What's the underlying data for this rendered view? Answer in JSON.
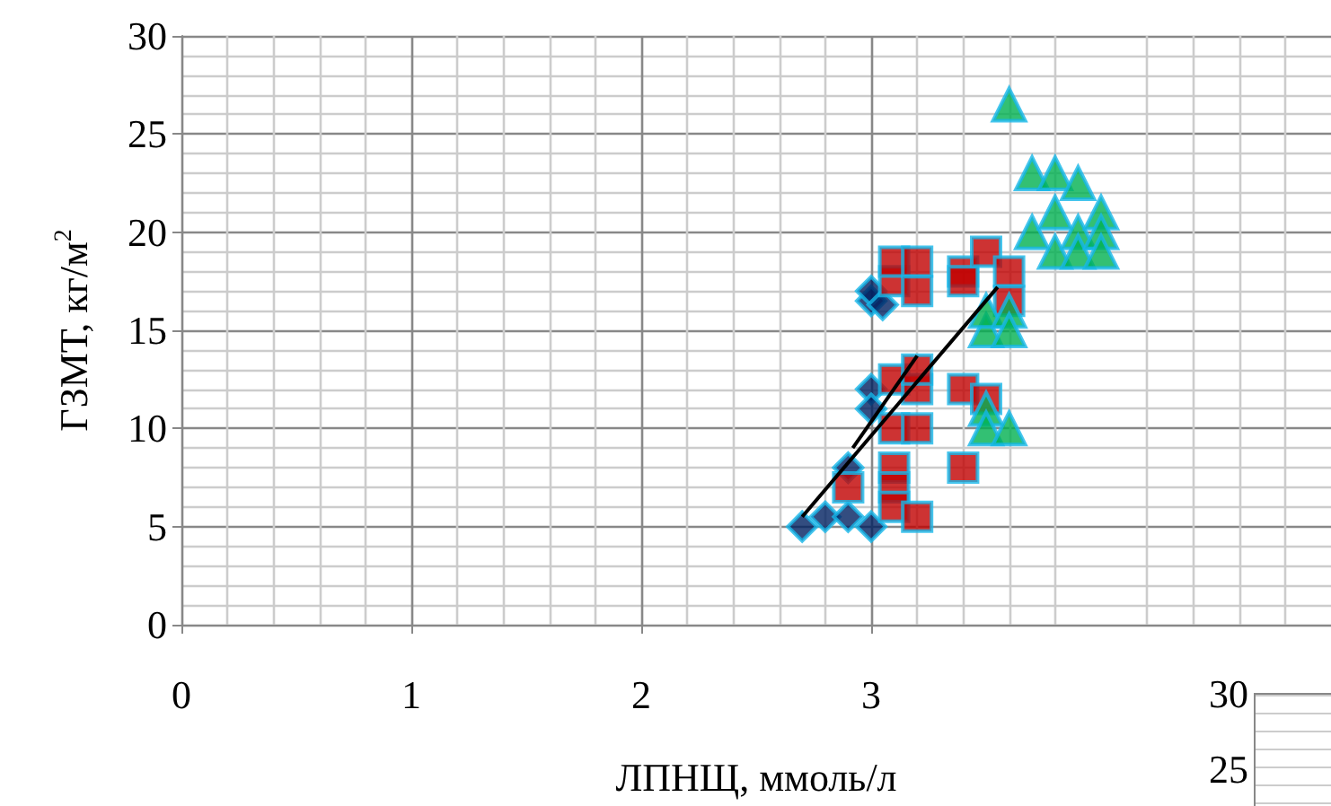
{
  "chart_data": [
    {
      "type": "scatter",
      "xlabel": "ЛПНЩ, ммоль/л",
      "ylabel": "ГЗМТ, кг/м$^{2}$",
      "xlim": [
        0,
        5
      ],
      "xticks": [
        0,
        1,
        2,
        3
      ],
      "ylim": [
        0,
        30
      ],
      "yticks": [
        0,
        5,
        10,
        15,
        20,
        25,
        30
      ],
      "grid": true,
      "series": [
        {
          "color": "#002060",
          "marker": "diamond",
          "x": [
            2.7,
            2.8,
            2.9,
            3.0,
            2.9,
            3.0,
            3.0,
            3.0,
            3.0,
            3.05
          ],
          "values": [
            5,
            5.5,
            5.5,
            5,
            8,
            12,
            11,
            16.5,
            17,
            16.3
          ]
        },
        {
          "color": "#c00000",
          "marker": "square",
          "x": [
            2.9,
            3.1,
            3.1,
            3.1,
            3.2,
            3.1,
            3.2,
            3.1,
            3.2,
            3.2,
            3.1,
            3.1,
            3.2,
            3.2,
            3.4,
            3.4,
            3.5,
            3.6,
            3.6,
            3.4,
            3.5,
            3.4
          ],
          "values": [
            7,
            8,
            7,
            6,
            5.5,
            10,
            10,
            12.5,
            12,
            13,
            17.5,
            18.5,
            18.5,
            17,
            18,
            17.5,
            19,
            18,
            16.5,
            12,
            11.5,
            8
          ]
        },
        {
          "color": "#00b050",
          "marker": "triangle",
          "x": [
            3.6,
            3.7,
            3.8,
            3.9,
            3.7,
            3.8,
            3.8,
            3.9,
            3.9,
            4.0,
            4.0,
            4.0,
            3.5,
            3.5,
            3.6,
            3.6,
            3.5,
            3.5,
            3.6
          ],
          "values": [
            26.5,
            23,
            23,
            22.5,
            20,
            21,
            19,
            20,
            19,
            21,
            20,
            19,
            15,
            16,
            16,
            15,
            11,
            10,
            10
          ]
        },
        {
          "type": "line",
          "color": "#000000",
          "marker": "none",
          "x": [
            2.7,
            3.55
          ],
          "values": [
            5.5,
            17.2
          ]
        },
        {
          "type": "line",
          "color": "#000000",
          "marker": "none",
          "x": [
            2.92,
            3.2
          ],
          "values": [
            9,
            13.7
          ]
        }
      ]
    },
    {
      "type": "other",
      "annotations": [
        "30",
        "25"
      ]
    }
  ]
}
